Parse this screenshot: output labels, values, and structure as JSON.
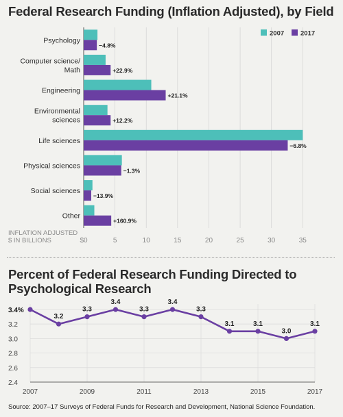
{
  "chart_data": [
    {
      "type": "bar",
      "title": "Federal Research Funding (Inflation Adjusted), by Field",
      "categories": [
        "Psychology",
        "Computer science/\nMath",
        "Engineering",
        "Environmental\nsciences",
        "Life sciences",
        "Physical sciences",
        "Social sciences",
        "Other"
      ],
      "series": [
        {
          "name": "2007",
          "values": [
            2.2,
            3.5,
            10.8,
            3.8,
            35.0,
            6.1,
            1.4,
            1.7
          ],
          "color": "#4dbfb9"
        },
        {
          "name": "2017",
          "values": [
            2.1,
            4.3,
            13.1,
            4.3,
            32.6,
            6.0,
            1.2,
            4.4
          ],
          "color": "#6a3fa2"
        }
      ],
      "annotations": [
        "−4.8%",
        "+22.9%",
        "+21.1%",
        "+12.2%",
        "−6.8%",
        "−1.3%",
        "−13.9%",
        "+160.9%"
      ],
      "xlabel": "INFLATION ADJUSTED\n$ IN BILLIONS",
      "xticks": [
        "$0",
        "5",
        "10",
        "15",
        "20",
        "25",
        "30",
        "35"
      ],
      "xlim": [
        0,
        36.5
      ],
      "legend_position": "top-right",
      "orientation": "horizontal"
    },
    {
      "type": "line",
      "title": "Percent of Federal Research Funding Directed to Psychological Research",
      "x": [
        2007,
        2008,
        2009,
        2010,
        2011,
        2012,
        2013,
        2014,
        2015,
        2016,
        2017
      ],
      "series": [
        {
          "values": [
            3.4,
            3.2,
            3.3,
            3.4,
            3.3,
            3.4,
            3.3,
            3.1,
            3.1,
            3.0,
            3.1
          ],
          "color": "#6a3fa2"
        }
      ],
      "data_labels": [
        "3.4%",
        "3.2",
        "3.3",
        "3.4",
        "3.3",
        "3.4",
        "3.3",
        "3.1",
        "3.1",
        "3.0",
        "3.1"
      ],
      "xticks": [
        "2007",
        "2009",
        "2011",
        "2013",
        "2015",
        "2017"
      ],
      "yticks": [
        "2.4",
        "2.6",
        "2.8",
        "3.0",
        "3.2",
        "3.4"
      ],
      "ylim": [
        2.4,
        3.5
      ],
      "grid": true
    }
  ],
  "source": "Source: 2007–17 Surveys of Federal Funds for Research and Development, National Science Foundation."
}
